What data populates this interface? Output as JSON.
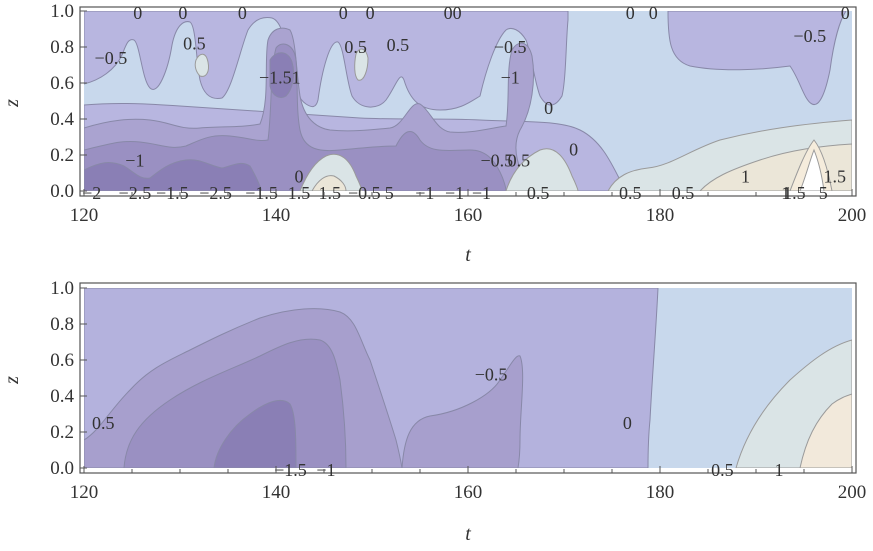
{
  "chart_data": [
    {
      "type": "contour",
      "xlabel": "t",
      "ylabel": "z",
      "xlim": [
        120,
        200
      ],
      "ylim": [
        0.0,
        1.0
      ],
      "x_ticks": [
        "120",
        "140",
        "160",
        "180",
        "200"
      ],
      "y_ticks": [
        "0.0",
        "0.2",
        "0.4",
        "0.6",
        "0.8",
        "1.0"
      ],
      "contour_levels": [
        -2,
        -1.5,
        -1,
        -0.5,
        0,
        0.5,
        1,
        1.5
      ],
      "colors": {
        "le_-2": "#7a6ea8",
        "-2_to_-1.5": "#8a7fb5",
        "-1.5_to_-1": "#9a90c2",
        "-1_to_-0.5": "#aaa3d0",
        "-0.5_to_0": "#b8b6e0",
        "0_to_0.5": "#c8d8ec",
        "0.5_to_1": "#dae4e6",
        "1_to_1.5": "#ebe6d8",
        "ge_1.5": "#f5ecdc"
      },
      "contour_labels": [
        {
          "text": "0",
          "t": 125.6,
          "z": 0.99
        },
        {
          "text": "0",
          "t": 130.3,
          "z": 0.99
        },
        {
          "text": "0",
          "t": 136.5,
          "z": 0.99
        },
        {
          "text": "0",
          "t": 147.0,
          "z": 0.99
        },
        {
          "text": "0",
          "t": 149.8,
          "z": 0.99
        },
        {
          "text": "00",
          "t": 158.4,
          "z": 0.99
        },
        {
          "text": "0",
          "t": 176.9,
          "z": 0.99
        },
        {
          "text": "0",
          "t": 179.3,
          "z": 0.99
        },
        {
          "text": "0",
          "t": 199.3,
          "z": 0.99
        },
        {
          "text": "0.5",
          "t": 131.5,
          "z": 0.82
        },
        {
          "text": "−0.5",
          "t": 122.8,
          "z": 0.74
        },
        {
          "text": "0.5",
          "t": 148.3,
          "z": 0.8
        },
        {
          "text": "0.5",
          "t": 152.7,
          "z": 0.81
        },
        {
          "text": "−0.5",
          "t": 164.4,
          "z": 0.8
        },
        {
          "text": "−0.5",
          "t": 195.6,
          "z": 0.86
        },
        {
          "text": "−1.51",
          "t": 140.4,
          "z": 0.63
        },
        {
          "text": "−1",
          "t": 164.4,
          "z": 0.63
        },
        {
          "text": "0",
          "t": 168.4,
          "z": 0.46
        },
        {
          "text": "0",
          "t": 171.0,
          "z": 0.23
        },
        {
          "text": "−1",
          "t": 125.3,
          "z": 0.17
        },
        {
          "text": "−0.5",
          "t": 163.0,
          "z": 0.17
        },
        {
          "text": "0.5",
          "t": 165.3,
          "z": 0.17
        },
        {
          "text": "0",
          "t": 142.4,
          "z": 0.08
        },
        {
          "text": "1",
          "t": 188.9,
          "z": 0.08
        },
        {
          "text": "1.5",
          "t": 198.2,
          "z": 0.08
        },
        {
          "text": "−2",
          "t": 120.8,
          "z": -0.01
        },
        {
          "text": "−2.5",
          "t": 125.3,
          "z": -0.01
        },
        {
          "text": "−1.5",
          "t": 129.2,
          "z": -0.01
        },
        {
          "text": "−2.5",
          "t": 133.7,
          "z": -0.01
        },
        {
          "text": "−1.5",
          "t": 138.5,
          "z": -0.01
        },
        {
          "text": "1.5",
          "t": 142.4,
          "z": -0.01
        },
        {
          "text": "1.5",
          "t": 145.6,
          "z": -0.01
        },
        {
          "text": "−0.5",
          "t": 149.2,
          "z": -0.01
        },
        {
          "text": "5",
          "t": 151.8,
          "z": -0.01
        },
        {
          "text": "−1",
          "t": 155.5,
          "z": -0.01
        },
        {
          "text": "−1",
          "t": 158.6,
          "z": -0.01
        },
        {
          "text": "−1",
          "t": 161.4,
          "z": -0.01
        },
        {
          "text": "0.5",
          "t": 167.3,
          "z": -0.01
        },
        {
          "text": "0.5",
          "t": 176.9,
          "z": -0.01
        },
        {
          "text": "0.5",
          "t": 182.4,
          "z": -0.01
        },
        {
          "text": "1",
          "t": 193.1,
          "z": -0.01
        },
        {
          "text": "1.5",
          "t": 194.0,
          "z": -0.01
        },
        {
          "text": "5",
          "t": 197.0,
          "z": -0.01
        }
      ]
    },
    {
      "type": "contour",
      "xlabel": "t",
      "ylabel": "z",
      "xlim": [
        120,
        200
      ],
      "ylim": [
        0.0,
        1.0
      ],
      "x_ticks": [
        "120",
        "140",
        "160",
        "180",
        "200"
      ],
      "y_ticks": [
        "0.0",
        "0.2",
        "0.4",
        "0.6",
        "0.8",
        "1.0"
      ],
      "contour_levels": [
        -1.5,
        -1,
        -0.5,
        0,
        0.5,
        1
      ],
      "colors": {
        "le_-1.5": "#8a7fb5",
        "-1.5_to_-1": "#9a90c2",
        "-1_to_-0.5": "#a79fcd",
        "-0.5_to_0": "#b4b2dd",
        "0_to_0.5": "#c8d8ec",
        "0.5_to_1": "#dae4e6",
        "ge_1": "#f2e9db"
      },
      "contour_labels": [
        {
          "text": "0.5",
          "t": 122.0,
          "z": 0.25
        },
        {
          "text": "−0.5",
          "t": 162.4,
          "z": 0.52
        },
        {
          "text": "0",
          "t": 176.6,
          "z": 0.25
        },
        {
          "text": "−1.5",
          "t": 141.5,
          "z": -0.01
        },
        {
          "text": "−1",
          "t": 145.2,
          "z": -0.01
        },
        {
          "text": "0.5",
          "t": 186.5,
          "z": -0.01
        },
        {
          "text": "1",
          "t": 192.4,
          "z": -0.01
        }
      ]
    }
  ]
}
